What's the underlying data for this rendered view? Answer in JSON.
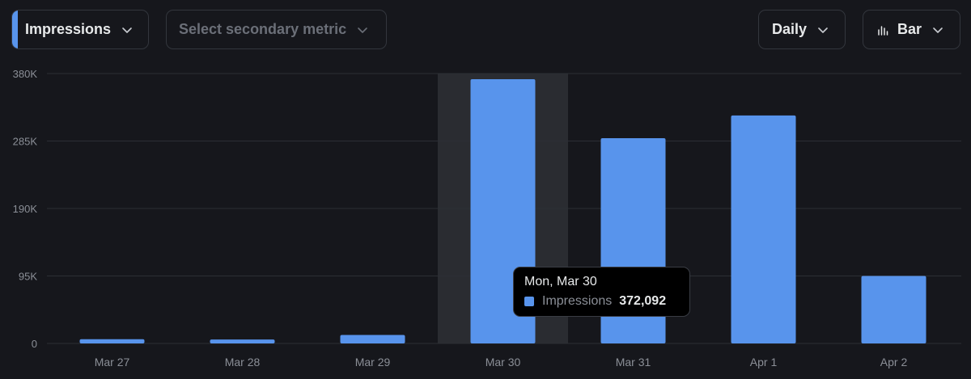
{
  "toolbar": {
    "primary_metric": "Impressions",
    "secondary_metric_placeholder": "Select secondary metric",
    "interval": "Daily",
    "chart_type": "Bar"
  },
  "colors": {
    "background": "#16171c",
    "bar": "#5894ec",
    "hover_band": "#2a2c31",
    "grid": "#2c2f35",
    "axis_text": "#8b8f97"
  },
  "icons": {
    "chevron": "chevron-down-icon",
    "chart_type": "bar-chart-icon"
  },
  "tooltip": {
    "date": "Mon, Mar 30",
    "series": "Impressions",
    "value": "372,092"
  },
  "chart_data": {
    "type": "bar",
    "categories": [
      "Mar 27",
      "Mar 28",
      "Mar 29",
      "Mar 30",
      "Mar 31",
      "Apr 1",
      "Apr 2"
    ],
    "series": [
      {
        "name": "Impressions",
        "values": [
          6000,
          5500,
          12000,
          372092,
          289000,
          321000,
          95000
        ]
      }
    ],
    "yticks": [
      0,
      95000,
      190000,
      285000,
      380000
    ],
    "ytick_labels": [
      "0",
      "95K",
      "190K",
      "285K",
      "380K"
    ],
    "ylim": [
      0,
      380000
    ],
    "grid": true,
    "highlighted_category": "Mar 30",
    "title": "",
    "xlabel": "",
    "ylabel": ""
  }
}
